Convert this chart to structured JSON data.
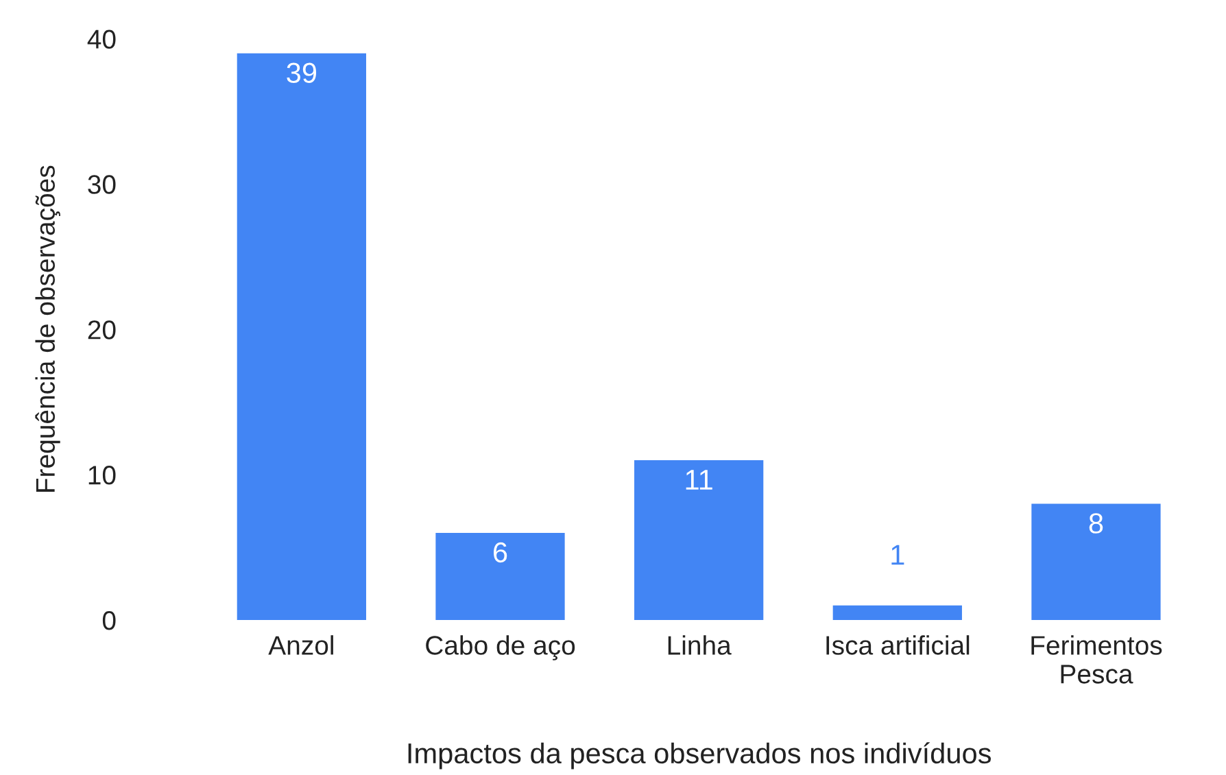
{
  "chart_data": {
    "type": "bar",
    "xlabel": "Impactos da pesca observados nos indivíduos",
    "ylabel": "Frequência de observações",
    "categories": [
      "Anzol",
      "Cabo de aço",
      "Linha",
      "Isca artificial",
      "Ferimentos\nPesca"
    ],
    "values": [
      39,
      6,
      11,
      1,
      8
    ],
    "color": "#4285f4",
    "ylim": [
      0,
      40
    ],
    "yticks": [
      0,
      10,
      20,
      30,
      40
    ],
    "grid": false,
    "data_labels": true,
    "legend": false
  }
}
